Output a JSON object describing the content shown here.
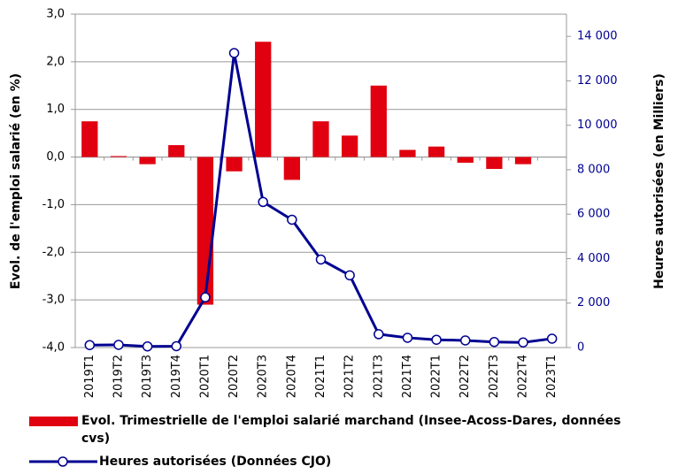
{
  "chart_data": {
    "type": "bar-line",
    "y_label": "Evol. de l'emploi salarié (en %)",
    "y2_label": "Heures autorisées (en Milliers)",
    "categories": [
      "2019T1",
      "2019T2",
      "2019T3",
      "2019T4",
      "2020T1",
      "2020T2",
      "2020T3",
      "2020T4",
      "2021T1",
      "2021T2",
      "2021T3",
      "2021T4",
      "2022T1",
      "2022T2",
      "2022T3",
      "2022T4",
      "2023T1"
    ],
    "series": [
      {
        "name": "Evol. Trimestrielle de l'emploi salarié marchand (Insee-Acoss-Dares, données cvs)",
        "color": "#e1000f",
        "type": "bar",
        "values": [
          0.75,
          0.02,
          -0.15,
          0.25,
          -3.1,
          -0.3,
          2.42,
          -0.48,
          0.75,
          0.45,
          1.5,
          0.15,
          0.22,
          -0.12,
          -0.25,
          -0.15,
          null
        ]
      },
      {
        "name": "Heures autorisées (Données CJO)",
        "color": "#000091",
        "type": "line",
        "axis": "y2",
        "values": [
          110,
          120,
          50,
          60,
          2260,
          13250,
          6550,
          5750,
          3960,
          3250,
          600,
          440,
          350,
          320,
          250,
          230,
          400
        ]
      }
    ],
    "ylim": [
      -4,
      3
    ],
    "yticks": [
      {
        "value": -4,
        "label": "-4,0"
      },
      {
        "value": -3,
        "label": "-3,0"
      },
      {
        "value": -2,
        "label": "-2,0"
      },
      {
        "value": -1,
        "label": "-1,0"
      },
      {
        "value": 0,
        "label": "0,0"
      },
      {
        "value": 1,
        "label": "1,0"
      },
      {
        "value": 2,
        "label": "2,0"
      },
      {
        "value": 3,
        "label": "3,0"
      }
    ],
    "y2lim": [
      0,
      15000
    ],
    "y2ticks": [
      0,
      {
        "value": 2000,
        "label": "2 000"
      },
      {
        "value": 4000,
        "label": "4 000"
      },
      {
        "value": 6000,
        "label": "6 000"
      },
      {
        "value": 8000,
        "label": "8 000"
      },
      {
        "value": 10000,
        "label": "10 000"
      },
      {
        "value": 12000,
        "label": "12 000"
      },
      {
        "value": 14000,
        "label": "14 000"
      }
    ],
    "grid": true
  }
}
